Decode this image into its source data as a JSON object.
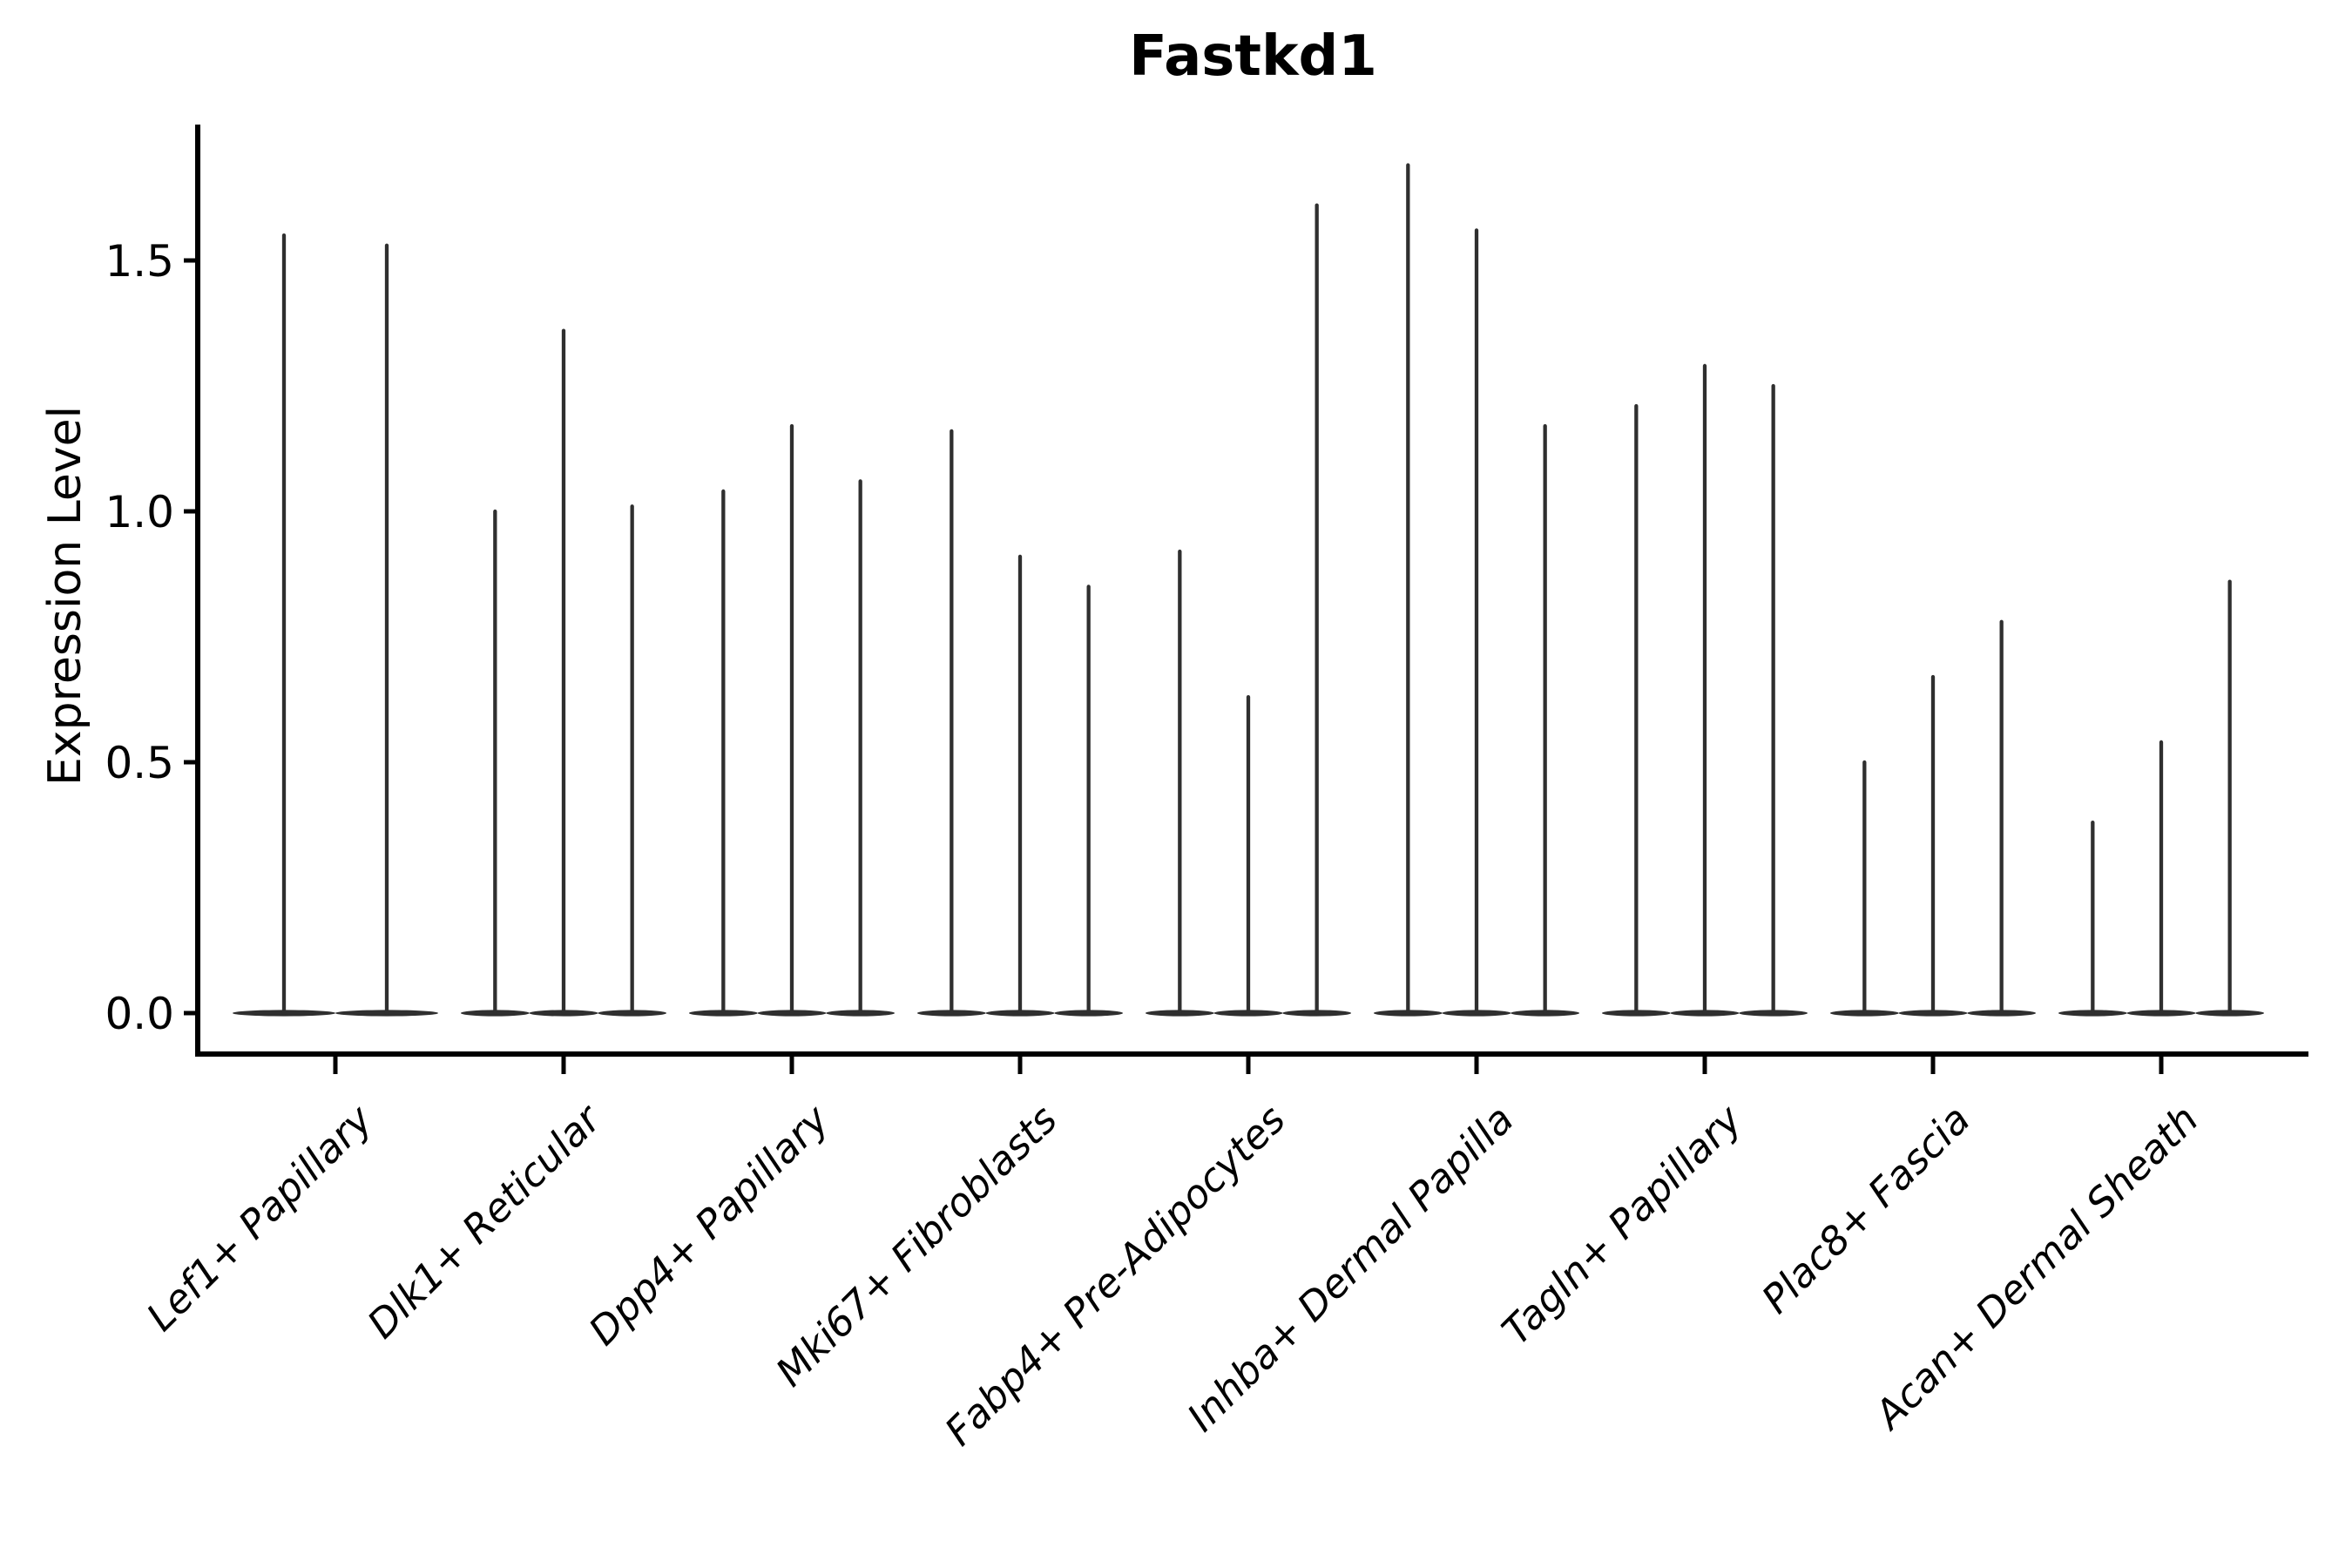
{
  "title": "Fastkd1",
  "chart_data": {
    "type": "violin",
    "title": "Fastkd1",
    "xlabel": "",
    "ylabel": "Expression Level",
    "ylim": [
      0,
      1.77
    ],
    "y_ticks": [
      0.0,
      0.5,
      1.0,
      1.5
    ],
    "y_tick_labels": [
      "0.0",
      "0.5",
      "1.0",
      "1.5"
    ],
    "grid": false,
    "legend": "none",
    "violin_style": "each violin collapses to a wide flat base at expression 0 with a thin vertical spike rising to its maximum value",
    "colors": {
      "violin": "#2f2f2f",
      "axis": "#000000",
      "background": "#ffffff"
    },
    "categories": [
      "Lef1+ Papillary",
      "Dlk1+ Reticular",
      "Dpp4+ Papillary",
      "Mki67+ Fibroblasts",
      "Fabp4+ Pre-Adipocytes",
      "Inhba+ Dermal Papilla",
      "Tagln+ Papillary",
      "Plac8+ Fascia",
      "Acan+ Dermal Sheath"
    ],
    "groups": [
      {
        "category": "Lef1+ Papillary",
        "violin_maxima": [
          1.55,
          1.53
        ]
      },
      {
        "category": "Dlk1+ Reticular",
        "violin_maxima": [
          1.0,
          1.36,
          1.01
        ]
      },
      {
        "category": "Dpp4+ Papillary",
        "violin_maxima": [
          1.04,
          1.17,
          1.06
        ]
      },
      {
        "category": "Mki67+ Fibroblasts",
        "violin_maxima": [
          1.16,
          0.91,
          0.85
        ]
      },
      {
        "category": "Fabp4+ Pre-Adipocytes",
        "violin_maxima": [
          0.92,
          0.63,
          1.61
        ]
      },
      {
        "category": "Inhba+ Dermal Papilla",
        "violin_maxima": [
          1.69,
          1.56,
          1.17
        ]
      },
      {
        "category": "Tagln+ Papillary",
        "violin_maxima": [
          1.21,
          1.29,
          1.25
        ]
      },
      {
        "category": "Plac8+ Fascia",
        "violin_maxima": [
          0.5,
          0.67,
          0.78
        ]
      },
      {
        "category": "Acan+ Dermal Sheath",
        "violin_maxima": [
          0.38,
          0.54,
          0.86
        ]
      }
    ]
  }
}
